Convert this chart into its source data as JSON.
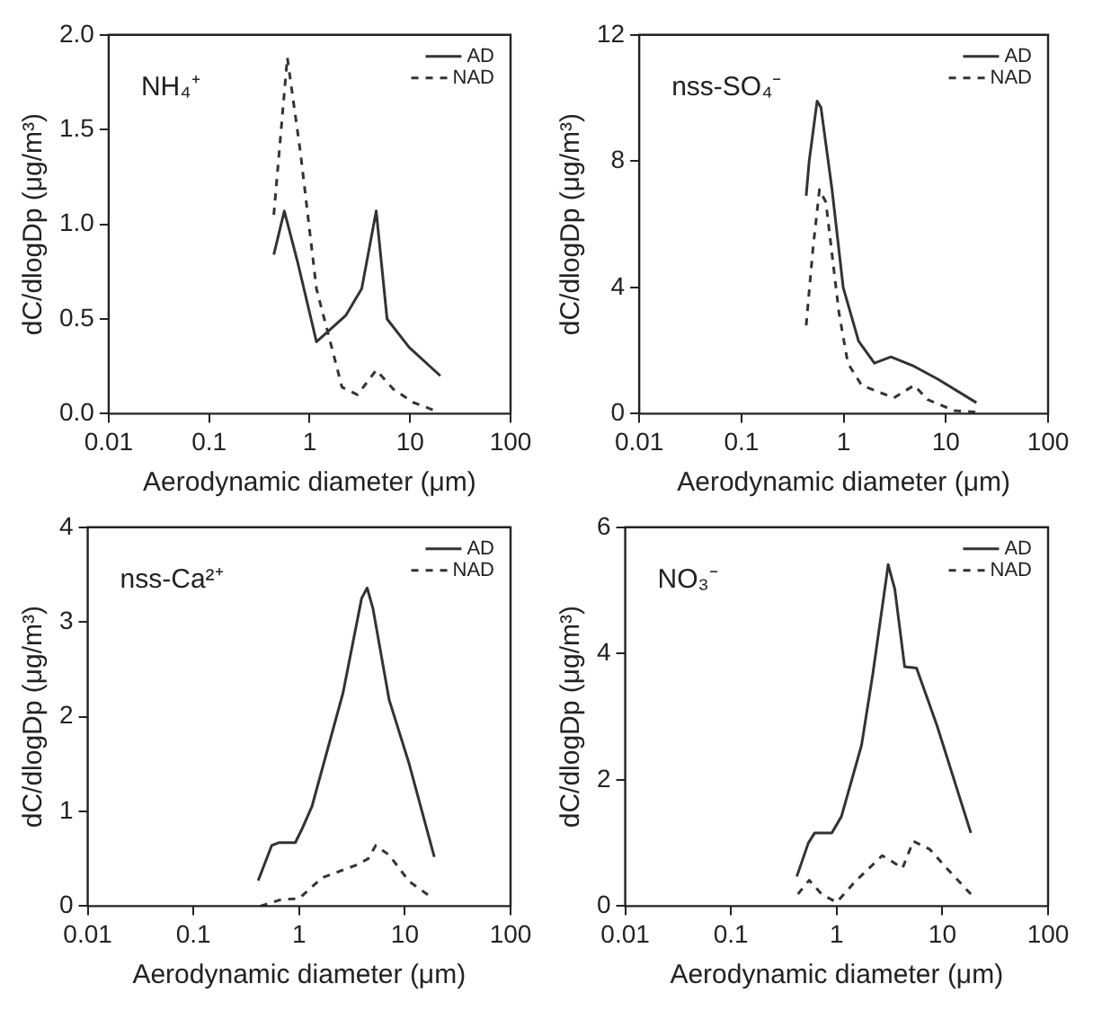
{
  "chart_data": [
    {
      "type": "line",
      "annotations": [
        "NH₄⁺"
      ],
      "xlabel": "Aerodynamic diameter (μm)",
      "ylabel": "dC/dlogDp (μg/m³)",
      "log": "x",
      "xlim": [
        0.01,
        100
      ],
      "xticks": [
        0.01,
        0.1,
        1,
        10,
        100
      ],
      "ylim": [
        0,
        2
      ],
      "yticks": [
        {
          "value": 0,
          "label": "0.0"
        },
        {
          "value": 0.5,
          "label": "0.5"
        },
        {
          "value": 1,
          "label": "1.0"
        },
        {
          "value": 1.5,
          "label": "1.5"
        },
        {
          "value": 2,
          "label": "2.0"
        }
      ],
      "grid": false,
      "legend": "top right",
      "series": [
        {
          "name": "AD",
          "color": "#333333",
          "line_style": "solid",
          "x": [
            0.44,
            0.56,
            0.76,
            1.17,
            2.3,
            3.3,
            4.6,
            5.9,
            9.8,
            20
          ],
          "values": [
            0.84,
            1.07,
            0.8,
            0.38,
            0.52,
            0.66,
            1.07,
            0.5,
            0.35,
            0.2
          ]
        },
        {
          "name": "NAD",
          "color": "#333333",
          "line_style": "dashed",
          "x": [
            0.44,
            0.6,
            0.81,
            1.17,
            2.1,
            3.0,
            4.6,
            6.8,
            10.7,
            19
          ],
          "values": [
            1.05,
            1.88,
            1.38,
            0.66,
            0.14,
            0.1,
            0.23,
            0.13,
            0.06,
            0.01
          ]
        }
      ]
    },
    {
      "type": "line",
      "annotations": [
        "nss-SO₄⁻"
      ],
      "xlabel": "Aerodynamic diameter (μm)",
      "ylabel": "dC/dlogDp (μg/m³)",
      "log": "x",
      "xlim": [
        0.01,
        100
      ],
      "xticks": [
        0.01,
        0.1,
        1,
        10,
        100
      ],
      "ylim": [
        0,
        12
      ],
      "yticks": [
        0,
        4,
        8,
        12
      ],
      "grid": false,
      "legend": "top right",
      "series": [
        {
          "name": "AD",
          "color": "#333333",
          "line_style": "solid",
          "x": [
            0.43,
            0.46,
            0.55,
            0.6,
            0.77,
            0.99,
            1.4,
            2.0,
            2.9,
            4.9,
            8.3,
            19.9
          ],
          "values": [
            6.9,
            8.0,
            9.9,
            9.7,
            7.1,
            4.0,
            2.3,
            1.6,
            1.8,
            1.5,
            1.1,
            0.35
          ]
        },
        {
          "name": "NAD",
          "color": "#333333",
          "line_style": "dashed",
          "x": [
            0.43,
            0.5,
            0.58,
            0.67,
            0.9,
            1.1,
            1.5,
            3.1,
            4.9,
            6.6,
            12,
            20
          ],
          "values": [
            2.8,
            5.2,
            7.1,
            6.7,
            3.2,
            1.6,
            0.9,
            0.5,
            0.9,
            0.45,
            0.1,
            0.05
          ]
        }
      ]
    },
    {
      "type": "line",
      "annotations": [
        "nss-Ca²⁺"
      ],
      "xlabel": "Aerodynamic diameter (μm)",
      "ylabel": "dC/dlogDp (μg/m³)",
      "log": "x",
      "xlim": [
        0.01,
        100
      ],
      "xticks": [
        0.01,
        0.1,
        1,
        10,
        100
      ],
      "ylim": [
        0,
        4
      ],
      "yticks": [
        0,
        1,
        2,
        3,
        4
      ],
      "grid": false,
      "legend": "top right",
      "series": [
        {
          "name": "AD",
          "color": "#333333",
          "line_style": "solid",
          "x": [
            0.41,
            0.55,
            0.64,
            0.92,
            1.06,
            1.32,
            2.6,
            3.9,
            4.4,
            5.0,
            7.1,
            11,
            19
          ],
          "values": [
            0.27,
            0.64,
            0.67,
            0.67,
            0.81,
            1.05,
            2.25,
            3.25,
            3.36,
            3.14,
            2.18,
            1.5,
            0.52
          ]
        },
        {
          "name": "NAD",
          "color": "#333333",
          "line_style": "dashed",
          "x": [
            0.43,
            0.68,
            1.0,
            1.65,
            3.4,
            4.5,
            5.3,
            7.1,
            11,
            18
          ],
          "values": [
            0,
            0.07,
            0.08,
            0.3,
            0.43,
            0.5,
            0.64,
            0.54,
            0.26,
            0.09
          ]
        }
      ]
    },
    {
      "type": "line",
      "annotations": [
        "NO₃⁻"
      ],
      "xlabel": "Aerodynamic diameter (μm)",
      "ylabel": "dC/dlogDp (μg/m³)",
      "log": "x",
      "xlim": [
        0.01,
        100
      ],
      "xticks": [
        0.01,
        0.1,
        1,
        10,
        100
      ],
      "ylim": [
        0,
        6
      ],
      "yticks": [
        0,
        2,
        4,
        6
      ],
      "grid": false,
      "legend": "top right",
      "series": [
        {
          "name": "AD",
          "color": "#333333",
          "line_style": "solid",
          "x": [
            0.42,
            0.54,
            0.62,
            0.9,
            1.11,
            1.72,
            2.2,
            3.0,
            3.07,
            3.55,
            4.4,
            5.7,
            8.9,
            18.6
          ],
          "values": [
            0.47,
            1.0,
            1.16,
            1.16,
            1.42,
            2.55,
            3.68,
            5.28,
            5.41,
            5.02,
            3.79,
            3.77,
            2.86,
            1.16
          ]
        },
        {
          "name": "NAD",
          "color": "#333333",
          "line_style": "dashed",
          "x": [
            0.43,
            0.55,
            0.72,
            1.0,
            1.5,
            2.7,
            3.4,
            4.2,
            5.3,
            7.6,
            11,
            18.6
          ],
          "values": [
            0.19,
            0.41,
            0.19,
            0.06,
            0.39,
            0.8,
            0.7,
            0.6,
            1.03,
            0.9,
            0.6,
            0.19
          ]
        }
      ]
    }
  ]
}
